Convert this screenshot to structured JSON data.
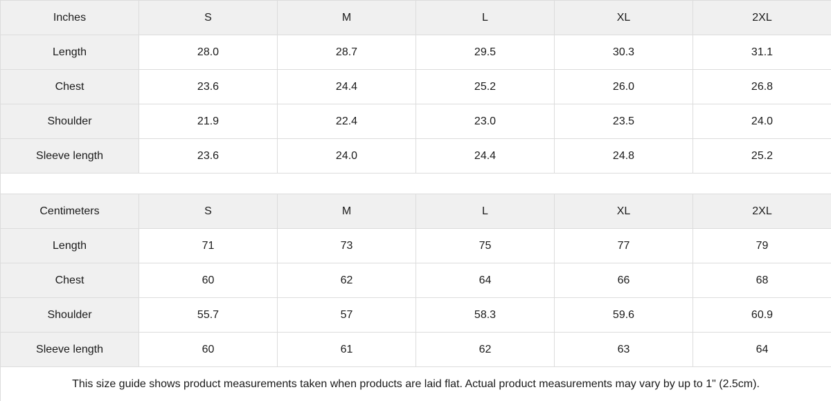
{
  "colors": {
    "header_bg": "#f0f0f0",
    "border": "#dcdcdc",
    "text": "#1a1a1a",
    "cell_bg": "#ffffff"
  },
  "tables": [
    {
      "unit_label": "Inches",
      "sizes": [
        "S",
        "M",
        "L",
        "XL",
        "2XL"
      ],
      "rows": [
        {
          "label": "Length",
          "values": [
            "28.0",
            "28.7",
            "29.5",
            "30.3",
            "31.1"
          ]
        },
        {
          "label": "Chest",
          "values": [
            "23.6",
            "24.4",
            "25.2",
            "26.0",
            "26.8"
          ]
        },
        {
          "label": "Shoulder",
          "values": [
            "21.9",
            "22.4",
            "23.0",
            "23.5",
            "24.0"
          ]
        },
        {
          "label": "Sleeve length",
          "values": [
            "23.6",
            "24.0",
            "24.4",
            "24.8",
            "25.2"
          ]
        }
      ]
    },
    {
      "unit_label": "Centimeters",
      "sizes": [
        "S",
        "M",
        "L",
        "XL",
        "2XL"
      ],
      "rows": [
        {
          "label": "Length",
          "values": [
            "71",
            "73",
            "75",
            "77",
            "79"
          ]
        },
        {
          "label": "Chest",
          "values": [
            "60",
            "62",
            "64",
            "66",
            "68"
          ]
        },
        {
          "label": "Shoulder",
          "values": [
            "55.7",
            "57",
            "58.3",
            "59.6",
            "60.9"
          ]
        },
        {
          "label": "Sleeve length",
          "values": [
            "60",
            "61",
            "62",
            "63",
            "64"
          ]
        }
      ]
    }
  ],
  "footer": {
    "note": "This size guide shows product measurements taken when products are laid flat.  Actual product measurements may vary by up to 1\" (2.5cm)."
  }
}
